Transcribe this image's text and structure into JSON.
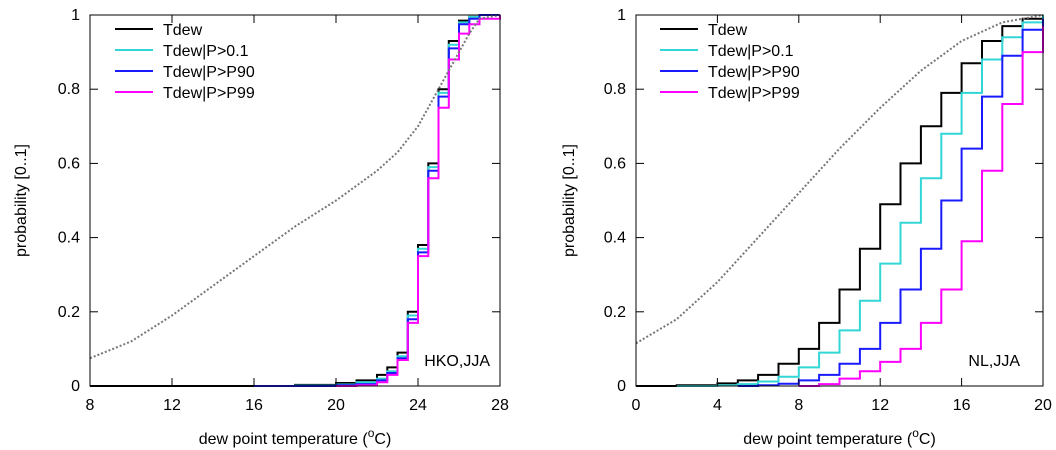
{
  "chart_data": [
    {
      "type": "line",
      "title": "",
      "xlabel": "dew point temperature (",
      "xlabel_sup": "o",
      "xlabel_suffix": "C)",
      "ylabel": "probability [0..1]",
      "xlim": [
        8,
        28
      ],
      "ylim": [
        0,
        1
      ],
      "xticks": [
        "8",
        "12",
        "16",
        "20",
        "24",
        "28"
      ],
      "xtick_values": [
        8,
        12,
        16,
        20,
        24,
        28
      ],
      "yticks": [
        "0",
        "0.2",
        "0.4",
        "0.6",
        "0.8",
        "1"
      ],
      "ytick_values": [
        0,
        0.2,
        0.4,
        0.6,
        0.8,
        1
      ],
      "grid": false,
      "legend_position": "top-left",
      "annotation": "HKO,JJA",
      "series": [
        {
          "name": "Tdew",
          "color": "#000000",
          "style": "solid",
          "step": true,
          "x": [
            8,
            16,
            18,
            20,
            21,
            22,
            22.5,
            23,
            23.5,
            24,
            24.5,
            25,
            25.5,
            26,
            26.5,
            27,
            28
          ],
          "y": [
            0,
            0,
            0.003,
            0.008,
            0.015,
            0.03,
            0.05,
            0.09,
            0.2,
            0.38,
            0.6,
            0.8,
            0.93,
            0.985,
            0.995,
            1,
            1
          ]
        },
        {
          "name": "Tdew|P>0.1",
          "color": "#33d6d6",
          "style": "solid",
          "step": true,
          "x": [
            16,
            18,
            20,
            21,
            22,
            22.5,
            23,
            23.5,
            24,
            24.5,
            25,
            25.5,
            26,
            26.5,
            27,
            28
          ],
          "y": [
            0,
            0.001,
            0.004,
            0.01,
            0.02,
            0.04,
            0.08,
            0.19,
            0.37,
            0.59,
            0.79,
            0.92,
            0.98,
            0.995,
            1,
            1
          ]
        },
        {
          "name": "Tdew|P>P90",
          "color": "#1a1aff",
          "style": "solid",
          "step": true,
          "x": [
            16,
            18,
            20,
            21,
            22,
            22.5,
            23,
            23.5,
            24,
            24.5,
            25,
            25.5,
            26,
            26.5,
            27,
            28
          ],
          "y": [
            0,
            0,
            0.002,
            0.005,
            0.015,
            0.035,
            0.075,
            0.18,
            0.36,
            0.58,
            0.78,
            0.91,
            0.975,
            0.99,
            1,
            1
          ]
        },
        {
          "name": "Tdew|P>P99",
          "color": "#ff00ff",
          "style": "solid",
          "step": true,
          "x": [
            20,
            21,
            22,
            22.5,
            23,
            23.5,
            24,
            24.5,
            25,
            25.5,
            26,
            26.5,
            27,
            28
          ],
          "y": [
            0,
            0.002,
            0.01,
            0.03,
            0.07,
            0.17,
            0.35,
            0.56,
            0.75,
            0.88,
            0.95,
            0.975,
            0.99,
            1
          ]
        },
        {
          "name": "",
          "color": "#777777",
          "style": "dotted",
          "step": false,
          "x": [
            8,
            10,
            12,
            14,
            16,
            18,
            20,
            21,
            22,
            23,
            24,
            25,
            26,
            26.5,
            27,
            28
          ],
          "y": [
            0.075,
            0.12,
            0.19,
            0.27,
            0.35,
            0.43,
            0.5,
            0.54,
            0.58,
            0.63,
            0.7,
            0.8,
            0.9,
            0.95,
            0.99,
            1
          ]
        }
      ]
    },
    {
      "type": "line",
      "title": "",
      "xlabel": "dew point temperature (",
      "xlabel_sup": "o",
      "xlabel_suffix": "C)",
      "ylabel": "probability [0..1]",
      "xlim": [
        0,
        20
      ],
      "ylim": [
        0,
        1
      ],
      "xticks": [
        "0",
        "4",
        "8",
        "12",
        "16",
        "20"
      ],
      "xtick_values": [
        0,
        4,
        8,
        12,
        16,
        20
      ],
      "yticks": [
        "0",
        "0.2",
        "0.4",
        "0.6",
        "0.8",
        "1"
      ],
      "ytick_values": [
        0,
        0.2,
        0.4,
        0.6,
        0.8,
        1
      ],
      "grid": false,
      "legend_position": "top-left",
      "annotation": "NL,JJA",
      "series": [
        {
          "name": "Tdew",
          "color": "#000000",
          "style": "solid",
          "step": true,
          "x": [
            0,
            2,
            4,
            5,
            6,
            7,
            8,
            9,
            10,
            11,
            12,
            13,
            14,
            15,
            16,
            17,
            18,
            19,
            20
          ],
          "y": [
            0,
            0.002,
            0.007,
            0.015,
            0.03,
            0.06,
            0.1,
            0.17,
            0.26,
            0.37,
            0.49,
            0.6,
            0.7,
            0.79,
            0.87,
            0.93,
            0.97,
            0.99,
            1
          ]
        },
        {
          "name": "Tdew|P>0.1",
          "color": "#33d6d6",
          "style": "solid",
          "step": true,
          "x": [
            2,
            4,
            5,
            6,
            7,
            8,
            9,
            10,
            11,
            12,
            13,
            14,
            15,
            16,
            17,
            18,
            19,
            20
          ],
          "y": [
            0,
            0.002,
            0.005,
            0.012,
            0.025,
            0.05,
            0.09,
            0.15,
            0.23,
            0.33,
            0.44,
            0.56,
            0.68,
            0.79,
            0.88,
            0.94,
            0.98,
            1
          ]
        },
        {
          "name": "Tdew|P>P90",
          "color": "#1a1aff",
          "style": "solid",
          "step": true,
          "x": [
            5,
            6,
            7,
            8,
            9,
            10,
            11,
            12,
            13,
            14,
            15,
            16,
            17,
            18,
            19,
            20
          ],
          "y": [
            0,
            0.002,
            0.006,
            0.015,
            0.03,
            0.06,
            0.1,
            0.17,
            0.26,
            0.37,
            0.5,
            0.64,
            0.78,
            0.89,
            0.96,
            0.99
          ]
        },
        {
          "name": "Tdew|P>P99",
          "color": "#ff00ff",
          "style": "solid",
          "step": true,
          "x": [
            8,
            9,
            10,
            11,
            12,
            13,
            14,
            15,
            16,
            17,
            18,
            19,
            20
          ],
          "y": [
            0,
            0.005,
            0.02,
            0.04,
            0.065,
            0.1,
            0.17,
            0.26,
            0.39,
            0.58,
            0.76,
            0.9,
            0.97
          ]
        },
        {
          "name": "",
          "color": "#777777",
          "style": "dotted",
          "step": false,
          "x": [
            0,
            2,
            4,
            6,
            8,
            10,
            12,
            14,
            16,
            18,
            20
          ],
          "y": [
            0.115,
            0.18,
            0.28,
            0.4,
            0.52,
            0.64,
            0.75,
            0.85,
            0.93,
            0.98,
            1
          ]
        }
      ]
    }
  ]
}
